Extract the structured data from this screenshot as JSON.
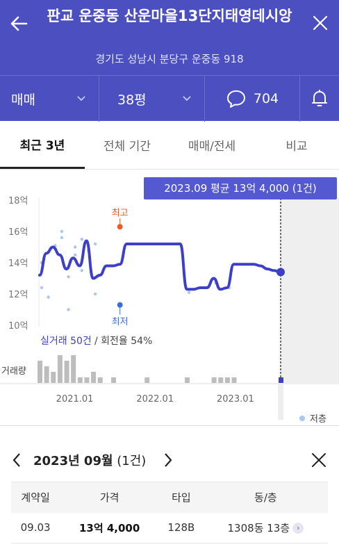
{
  "header": {
    "title": "판교 운중동 산운마을13단지태영데시앙",
    "address": "경기도 성남시 분당구 운중동 918"
  },
  "filters": {
    "trade_type": "매매",
    "area": "38평",
    "comment_count": "704"
  },
  "tabs": [
    {
      "label": "최근 3년",
      "active": true
    },
    {
      "label": "전체 기간",
      "active": false
    },
    {
      "label": "매매/전세",
      "active": false
    },
    {
      "label": "비교",
      "active": false
    }
  ],
  "chart_data": {
    "type": "line",
    "ylabels": [
      "18억",
      "16억",
      "14억",
      "12억",
      "10억"
    ],
    "yticks": [
      18,
      16,
      14,
      12,
      10
    ],
    "ylim": [
      9.5,
      18.5
    ],
    "xlabels": [
      "2021.01",
      "2022.01",
      "2023.01"
    ],
    "xlim": [
      "2020.09",
      "2023.11"
    ],
    "tooltip": "2023.09 평균 13억 4,000 (1건)",
    "high_label": "최고",
    "low_label": "최저",
    "high_point": {
      "x": "2021.09",
      "y": 16.3
    },
    "low_point": {
      "x": "2021.09",
      "y": 11.3
    },
    "summary_count": "실거래 50건",
    "summary_rate": " / 회전율 54%",
    "volume_label": "거래량",
    "legend_label": "저층",
    "accent": "#3d3fc9",
    "high_color": "#ee5a2a",
    "low_color": "#3a6fd8",
    "line": [
      {
        "x": "2020.09",
        "y": 13.2
      },
      {
        "x": "2020.10",
        "y": 14.6
      },
      {
        "x": "2020.11",
        "y": 15.0
      },
      {
        "x": "2020.12",
        "y": 14.5
      },
      {
        "x": "2021.01",
        "y": 13.6
      },
      {
        "x": "2021.02",
        "y": 14.3
      },
      {
        "x": "2021.03",
        "y": 13.8
      },
      {
        "x": "2021.04",
        "y": 15.4
      },
      {
        "x": "2021.05",
        "y": 13.0
      },
      {
        "x": "2021.06",
        "y": 13.2
      },
      {
        "x": "2021.07",
        "y": 13.8
      },
      {
        "x": "2021.08",
        "y": 13.8
      },
      {
        "x": "2021.09",
        "y": 13.9
      },
      {
        "x": "2021.10",
        "y": 15.2
      },
      {
        "x": "2021.11",
        "y": 15.2
      },
      {
        "x": "2021.12",
        "y": 15.2
      },
      {
        "x": "2022.01",
        "y": 15.2
      },
      {
        "x": "2022.02",
        "y": 15.2
      },
      {
        "x": "2022.03",
        "y": 15.2
      },
      {
        "x": "2022.04",
        "y": 15.2
      },
      {
        "x": "2022.05",
        "y": 15.2
      },
      {
        "x": "2022.06",
        "y": 15.2
      },
      {
        "x": "2022.07",
        "y": 12.3
      },
      {
        "x": "2022.08",
        "y": 12.3
      },
      {
        "x": "2022.09",
        "y": 12.4
      },
      {
        "x": "2022.10",
        "y": 12.4
      },
      {
        "x": "2022.11",
        "y": 13.0
      },
      {
        "x": "2022.12",
        "y": 12.3
      },
      {
        "x": "2023.01",
        "y": 12.4
      },
      {
        "x": "2023.02",
        "y": 13.9
      },
      {
        "x": "2023.03",
        "y": 13.9
      },
      {
        "x": "2023.04",
        "y": 13.9
      },
      {
        "x": "2023.05",
        "y": 13.9
      },
      {
        "x": "2023.06",
        "y": 13.8
      },
      {
        "x": "2023.07",
        "y": 13.6
      },
      {
        "x": "2023.08",
        "y": 13.5
      },
      {
        "x": "2023.09",
        "y": 13.4
      }
    ],
    "transactions": [
      {
        "x": "2020.09",
        "y": 14.0
      },
      {
        "x": "2020.09",
        "y": 12.4
      },
      {
        "x": "2020.10",
        "y": 11.8
      },
      {
        "x": "2020.11",
        "y": 15.1
      },
      {
        "x": "2020.12",
        "y": 15.6
      },
      {
        "x": "2020.12",
        "y": 16.0
      },
      {
        "x": "2021.01",
        "y": 13.1
      },
      {
        "x": "2021.01",
        "y": 11.0
      },
      {
        "x": "2021.02",
        "y": 15.0
      },
      {
        "x": "2021.02",
        "y": 14.5
      },
      {
        "x": "2021.03",
        "y": 15.5
      },
      {
        "x": "2021.03",
        "y": 13.5
      },
      {
        "x": "2021.04",
        "y": 14.8
      },
      {
        "x": "2021.05",
        "y": 15.2
      },
      {
        "x": "2021.05",
        "y": 12.0
      },
      {
        "x": "2022.07",
        "y": 12.1
      },
      {
        "x": "2022.11",
        "y": 12.7
      },
      {
        "x": "2023.01",
        "y": 12.4
      }
    ],
    "volume": [
      {
        "x": "2020.09",
        "v": 4
      },
      {
        "x": "2020.10",
        "v": 3
      },
      {
        "x": "2020.11",
        "v": 2
      },
      {
        "x": "2020.12",
        "v": 5
      },
      {
        "x": "2021.01",
        "v": 4
      },
      {
        "x": "2021.02",
        "v": 5
      },
      {
        "x": "2021.03",
        "v": 1
      },
      {
        "x": "2021.04",
        "v": 1
      },
      {
        "x": "2021.05",
        "v": 2
      },
      {
        "x": "2021.06",
        "v": 1
      },
      {
        "x": "2021.08",
        "v": 1
      },
      {
        "x": "2022.01",
        "v": 1
      },
      {
        "x": "2022.07",
        "v": 1
      },
      {
        "x": "2022.11",
        "v": 1
      },
      {
        "x": "2022.12",
        "v": 1
      },
      {
        "x": "2023.01",
        "v": 1
      },
      {
        "x": "2023.02",
        "v": 1
      },
      {
        "x": "2023.09",
        "v": 1
      }
    ]
  },
  "detail": {
    "month_label": "2023년 09월",
    "month_count": " (1건)",
    "columns": [
      "계약일",
      "가격",
      "타입",
      "동/층"
    ],
    "rows": [
      {
        "date": "09.03",
        "price": "13억 4,000",
        "type": "128B",
        "floor": "1308동 13층"
      }
    ]
  }
}
